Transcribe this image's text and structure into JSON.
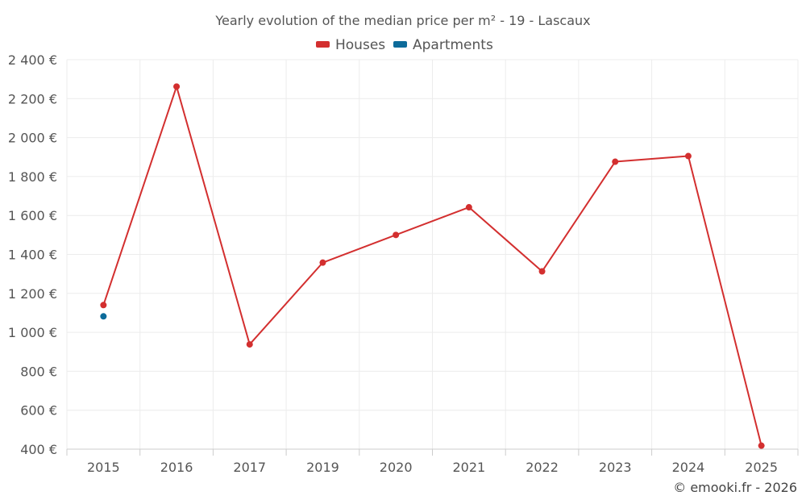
{
  "chart_data": {
    "type": "line",
    "title": "Yearly evolution of the median price per m² - 19 - Lascaux",
    "categories": [
      "2015",
      "2016",
      "2017",
      "2019",
      "2020",
      "2021",
      "2022",
      "2023",
      "2024",
      "2025"
    ],
    "series": [
      {
        "name": "Houses",
        "color": "#d32f2f",
        "values": [
          1140,
          2262,
          938,
          1358,
          1500,
          1642,
          1313,
          1876,
          1905,
          418
        ]
      },
      {
        "name": "Apartments",
        "color": "#0d6b9a",
        "values": [
          1082,
          null,
          null,
          null,
          null,
          null,
          null,
          null,
          null,
          null
        ]
      }
    ],
    "y_ticks": [
      400,
      600,
      800,
      1000,
      1200,
      1400,
      1600,
      1800,
      2000,
      2200,
      2400
    ],
    "y_tick_labels": [
      "400 €",
      "600 €",
      "800 €",
      "1 000 €",
      "1 200 €",
      "1 400 €",
      "1 600 €",
      "1 800 €",
      "2 000 €",
      "2 200 €",
      "2 400 €"
    ],
    "ylim": [
      400,
      2400
    ],
    "xlabel": "",
    "ylabel": "",
    "legend_position": "top-center",
    "grid": true
  },
  "credit": "© emooki.fr - 2026"
}
